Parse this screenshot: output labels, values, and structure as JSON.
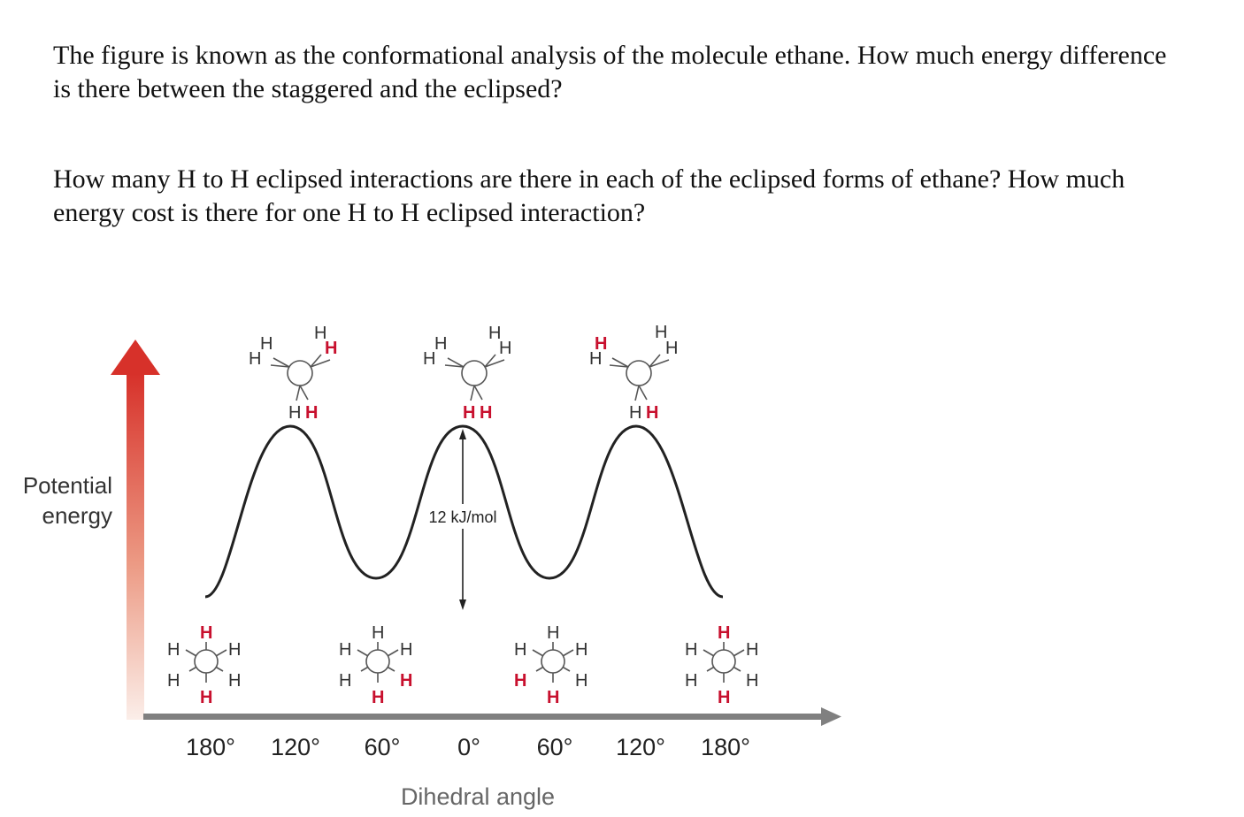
{
  "question1": {
    "line1": "The figure is known as the conformational analysis of the molecule ethane. How much energy difference",
    "line2": "is there between the staggered and the eclipsed?"
  },
  "question2": {
    "line1": "How many H to H eclipsed interactions are there in each of the eclipsed forms of ethane? How much",
    "line2": "energy cost is there for one H to H eclipsed interaction?"
  },
  "figure": {
    "y_label_line1": "Potential",
    "y_label_line2": "energy",
    "x_label": "Dihedral angle",
    "x_ticks": [
      "180°",
      "120°",
      "60°",
      "0°",
      "60°",
      "120°",
      "180°"
    ],
    "energy_gap_label": "12 kJ/mol",
    "atom": "H",
    "colors": {
      "accent_red": "#c8102e",
      "arrow_gradient_top": "#d7312a",
      "arrow_gradient_bottom": "#fbeee9",
      "curve": "#222222",
      "x_axis": "#808080"
    }
  }
}
